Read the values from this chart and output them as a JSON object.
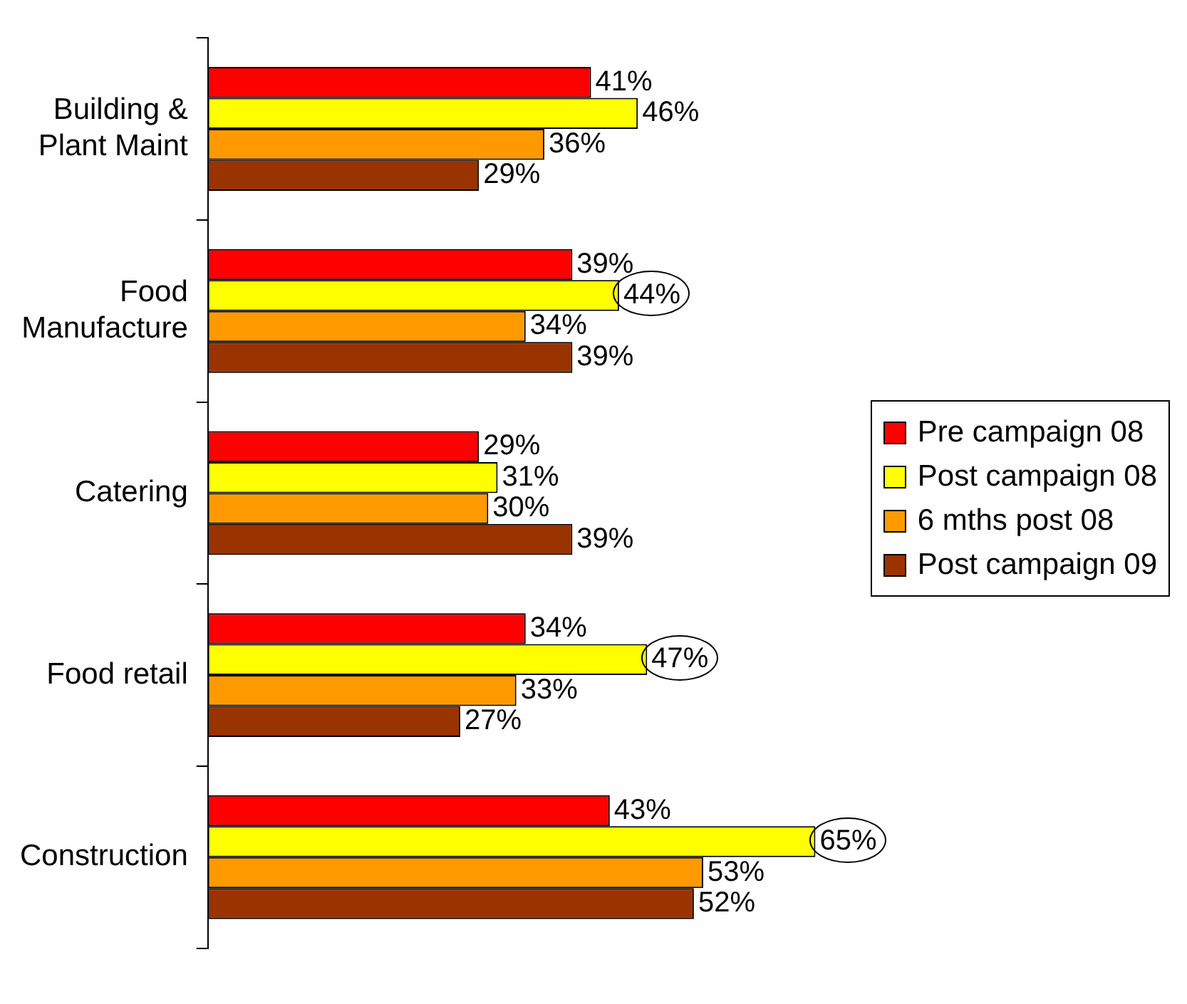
{
  "chart_data": {
    "type": "bar",
    "orientation": "horizontal",
    "categories": [
      "Building & Plant Maint",
      "Food Manufacture",
      "Catering",
      "Food retail",
      "Construction"
    ],
    "series": [
      {
        "name": "Pre campaign 08",
        "color": "#ff0000",
        "values": [
          41,
          39,
          29,
          34,
          43
        ],
        "value_labels": [
          "41%",
          "39%",
          "29%",
          "34%",
          "43%"
        ]
      },
      {
        "name": "Post campaign 08",
        "color": "#ffff00",
        "values": [
          46,
          44,
          31,
          47,
          65
        ],
        "value_labels": [
          "46%",
          "44%",
          "31%",
          "47%",
          "65%"
        ]
      },
      {
        "name": "6 mths post 08",
        "color": "#ff9900",
        "values": [
          36,
          34,
          30,
          33,
          53
        ],
        "value_labels": [
          "36%",
          "34%",
          "30%",
          "33%",
          "53%"
        ]
      },
      {
        "name": "Post campaign 09",
        "color": "#993300",
        "values": [
          29,
          39,
          39,
          27,
          52
        ],
        "value_labels": [
          "29%",
          "39%",
          "39%",
          "27%",
          "52%"
        ]
      }
    ],
    "tick_labels": "y",
    "grid": false,
    "legend": "right"
  }
}
